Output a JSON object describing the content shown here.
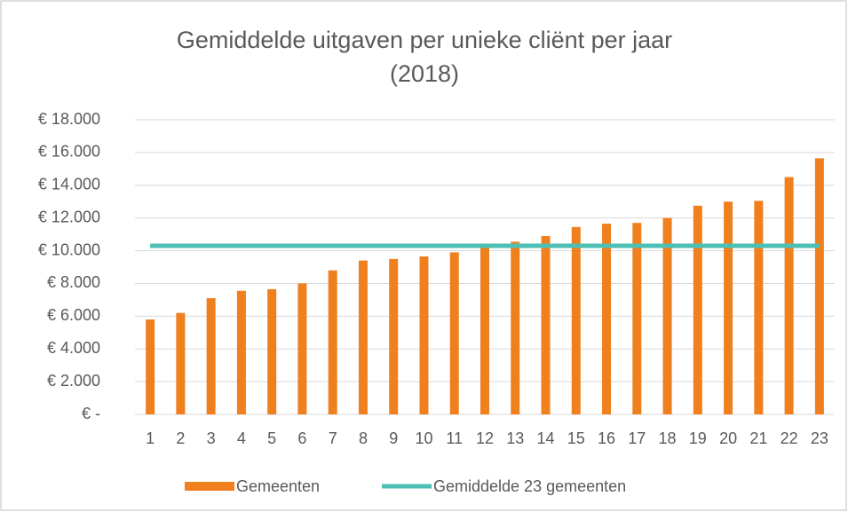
{
  "chart_data": {
    "type": "bar",
    "title": [
      "Gemiddelde uitgaven per unieke cliënt per jaar",
      "(2018)"
    ],
    "categories": [
      1,
      2,
      3,
      4,
      5,
      6,
      7,
      8,
      9,
      10,
      11,
      12,
      13,
      14,
      15,
      16,
      17,
      18,
      19,
      20,
      21,
      22,
      23
    ],
    "series": [
      {
        "name": "Gemeenten",
        "type": "bar",
        "color": "#f07f1e",
        "values": [
          5800,
          6200,
          7100,
          7550,
          7650,
          8000,
          8800,
          9400,
          9500,
          9650,
          9900,
          10300,
          10550,
          10900,
          11450,
          11650,
          11700,
          12000,
          12750,
          13000,
          13050,
          14500,
          15650
        ]
      },
      {
        "name": "Gemiddelde 23 gemeenten",
        "type": "line",
        "color": "#4dbfb4",
        "values": [
          10300,
          10300,
          10300,
          10300,
          10300,
          10300,
          10300,
          10300,
          10300,
          10300,
          10300,
          10300,
          10300,
          10300,
          10300,
          10300,
          10300,
          10300,
          10300,
          10300,
          10300,
          10300,
          10300
        ]
      }
    ],
    "ylim": [
      0,
      18000
    ],
    "yticks": [
      {
        "value": 0,
        "label": "€ -"
      },
      {
        "value": 2000,
        "label": "€ 2.000"
      },
      {
        "value": 4000,
        "label": "€ 4.000"
      },
      {
        "value": 6000,
        "label": "€ 6.000"
      },
      {
        "value": 8000,
        "label": "€ 8.000"
      },
      {
        "value": 10000,
        "label": "€ 10.000"
      },
      {
        "value": 12000,
        "label": "€ 12.000"
      },
      {
        "value": 14000,
        "label": "€ 14.000"
      },
      {
        "value": 16000,
        "label": "€ 16.000"
      },
      {
        "value": 18000,
        "label": "€ 18.000"
      }
    ],
    "grid": true,
    "legend": "bottom"
  }
}
